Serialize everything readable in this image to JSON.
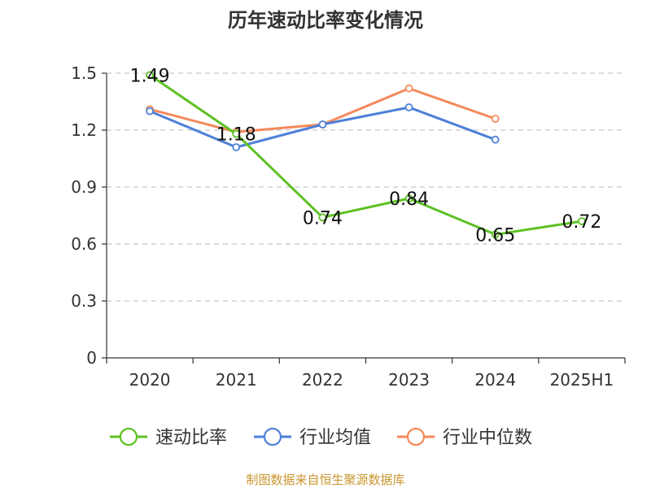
{
  "chart_data": {
    "type": "line",
    "title": "历年速动比率变化情况",
    "categories": [
      "2020",
      "2021",
      "2022",
      "2023",
      "2024",
      "2025H1"
    ],
    "ylim": [
      0,
      1.5
    ],
    "yticks": [
      "0",
      "0.3",
      "0.6",
      "0.9",
      "1.2",
      "1.5"
    ],
    "ytick_values": [
      0,
      0.3,
      0.6,
      0.9,
      1.2,
      1.5
    ],
    "grid": true,
    "legend_position": "bottom",
    "series": [
      {
        "name": "速动比率",
        "color": "#5dc123",
        "values": [
          1.49,
          1.18,
          0.74,
          0.84,
          0.65,
          0.72
        ],
        "labels": [
          "1.49",
          "1.18",
          "0.74",
          "0.84",
          "0.65",
          "0.72"
        ]
      },
      {
        "name": "行业均值",
        "color": "#4e80d8",
        "values": [
          1.3,
          1.11,
          1.23,
          1.32,
          1.15,
          null
        ]
      },
      {
        "name": "行业中位数",
        "color": "#f5895a",
        "values": [
          1.31,
          1.19,
          1.23,
          1.42,
          1.26,
          null
        ]
      }
    ]
  },
  "footer": {
    "source": "制图数据来自恒生聚源数据库"
  }
}
